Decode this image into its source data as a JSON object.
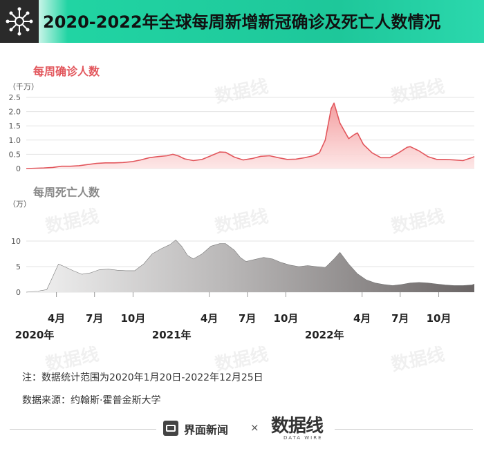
{
  "header": {
    "title": "2020-2022年全球每周新增新冠确诊及死亡人数情况",
    "logo_icon": "virus-network-icon"
  },
  "colors": {
    "header_green": "#1ec79a",
    "cases_red": "#e2565c",
    "cases_fill": "#f7b8b8",
    "deaths_gray": "#6d6868",
    "deaths_fill_light": "#e8e7e7"
  },
  "chart_data": [
    {
      "type": "area",
      "title": "每周确诊人数",
      "unit": "（千万）",
      "ylim": [
        0,
        2.5
      ],
      "yticks": [
        "2.5",
        "2.0",
        "1.5",
        "1.0",
        "0.5",
        "0"
      ],
      "x_start": "2020-01-20",
      "x_end": "2022-12-25",
      "grid": true,
      "series": [
        {
          "x": [
            "2020-01-20",
            "2020-03-02",
            "2020-03-23",
            "2020-04-13",
            "2020-05-04",
            "2020-05-25",
            "2020-06-15",
            "2020-07-06",
            "2020-07-27",
            "2020-08-17",
            "2020-09-07",
            "2020-09-28",
            "2020-10-19",
            "2020-11-09",
            "2020-11-30",
            "2020-12-21",
            "2021-01-04",
            "2021-01-18",
            "2021-02-01",
            "2021-02-22",
            "2021-03-15",
            "2021-04-05",
            "2021-04-26",
            "2021-05-10",
            "2021-05-31",
            "2021-06-21",
            "2021-07-12",
            "2021-08-02",
            "2021-08-23",
            "2021-09-13",
            "2021-10-04",
            "2021-10-25",
            "2021-11-15",
            "2021-12-06",
            "2021-12-20",
            "2022-01-03",
            "2022-01-17",
            "2022-01-24",
            "2022-02-07",
            "2022-02-28",
            "2022-03-14",
            "2022-03-21",
            "2022-04-04",
            "2022-04-25",
            "2022-05-16",
            "2022-06-06",
            "2022-06-27",
            "2022-07-18",
            "2022-07-25",
            "2022-08-15",
            "2022-09-05",
            "2022-09-26",
            "2022-10-17",
            "2022-11-07",
            "2022-11-28",
            "2022-12-19",
            "2022-12-25"
          ],
          "values": [
            0.0,
            0.02,
            0.04,
            0.08,
            0.08,
            0.1,
            0.14,
            0.18,
            0.2,
            0.2,
            0.21,
            0.24,
            0.3,
            0.38,
            0.42,
            0.45,
            0.5,
            0.44,
            0.34,
            0.28,
            0.32,
            0.45,
            0.58,
            0.57,
            0.4,
            0.3,
            0.35,
            0.43,
            0.45,
            0.38,
            0.32,
            0.33,
            0.38,
            0.45,
            0.55,
            1.0,
            2.1,
            2.3,
            1.6,
            1.05,
            1.2,
            1.25,
            0.85,
            0.55,
            0.38,
            0.38,
            0.55,
            0.75,
            0.77,
            0.62,
            0.42,
            0.32,
            0.32,
            0.3,
            0.28,
            0.38,
            0.42
          ]
        }
      ]
    },
    {
      "type": "area",
      "title": "每周死亡人数",
      "unit": "（万）",
      "ylim": [
        0,
        10
      ],
      "yticks": [
        "10",
        "5",
        "0"
      ],
      "x_start": "2020-01-20",
      "x_end": "2022-12-25",
      "grid": true,
      "xtick_labels": [
        {
          "label": "4月",
          "year": "2020年",
          "date": "2020-04-01"
        },
        {
          "label": "7月",
          "date": "2020-07-01"
        },
        {
          "label": "10月",
          "date": "2020-10-01"
        },
        {
          "label": "",
          "year": "2021年",
          "date": "2021-01-01"
        },
        {
          "label": "4月",
          "date": "2021-04-01"
        },
        {
          "label": "7月",
          "date": "2021-07-01"
        },
        {
          "label": "10月",
          "date": "2021-10-01"
        },
        {
          "label": "",
          "year": "2022年",
          "date": "2022-01-01"
        },
        {
          "label": "4月",
          "date": "2022-04-01"
        },
        {
          "label": "7月",
          "date": "2022-07-01"
        },
        {
          "label": "10月",
          "date": "2022-10-01"
        }
      ],
      "series": [
        {
          "x": [
            "2020-01-20",
            "2020-02-17",
            "2020-03-09",
            "2020-03-23",
            "2020-04-06",
            "2020-04-20",
            "2020-05-11",
            "2020-06-01",
            "2020-06-22",
            "2020-07-13",
            "2020-08-03",
            "2020-08-24",
            "2020-09-14",
            "2020-10-05",
            "2020-10-26",
            "2020-11-16",
            "2020-12-07",
            "2020-12-28",
            "2021-01-11",
            "2021-01-25",
            "2021-02-08",
            "2021-02-22",
            "2021-03-15",
            "2021-04-05",
            "2021-04-26",
            "2021-05-10",
            "2021-05-31",
            "2021-06-14",
            "2021-06-28",
            "2021-07-19",
            "2021-08-09",
            "2021-08-30",
            "2021-09-20",
            "2021-10-11",
            "2021-11-01",
            "2021-11-22",
            "2021-12-13",
            "2022-01-03",
            "2022-01-24",
            "2022-02-07",
            "2022-02-28",
            "2022-03-21",
            "2022-04-11",
            "2022-05-02",
            "2022-05-23",
            "2022-06-13",
            "2022-07-04",
            "2022-07-25",
            "2022-08-15",
            "2022-09-05",
            "2022-09-26",
            "2022-10-17",
            "2022-11-07",
            "2022-11-28",
            "2022-12-19",
            "2022-12-25"
          ],
          "values": [
            0.0,
            0.2,
            0.5,
            3.0,
            5.5,
            5.0,
            4.2,
            3.5,
            3.8,
            4.4,
            4.5,
            4.3,
            4.2,
            4.2,
            5.5,
            7.5,
            8.5,
            9.3,
            10.2,
            9.0,
            7.2,
            6.5,
            7.5,
            9.0,
            9.5,
            9.5,
            8.2,
            6.8,
            6.0,
            6.4,
            6.8,
            6.5,
            5.8,
            5.3,
            5.0,
            5.2,
            5.0,
            4.8,
            6.5,
            7.8,
            5.5,
            3.6,
            2.4,
            1.8,
            1.5,
            1.3,
            1.5,
            1.8,
            1.9,
            1.8,
            1.6,
            1.4,
            1.3,
            1.3,
            1.4,
            1.6
          ]
        }
      ]
    }
  ],
  "notes": {
    "range": "注：数据统计范围为2020年1月20日-2022年12月25日",
    "source": "数据来源：约翰斯·霍普金斯大学"
  },
  "footer": {
    "brand_jiemian": "界面新闻",
    "separator": "×",
    "brand_shujuxian": "数据线",
    "brand_datawire": "DATA WIRE",
    "jiemian_icon": "jiemian-logo-icon"
  }
}
